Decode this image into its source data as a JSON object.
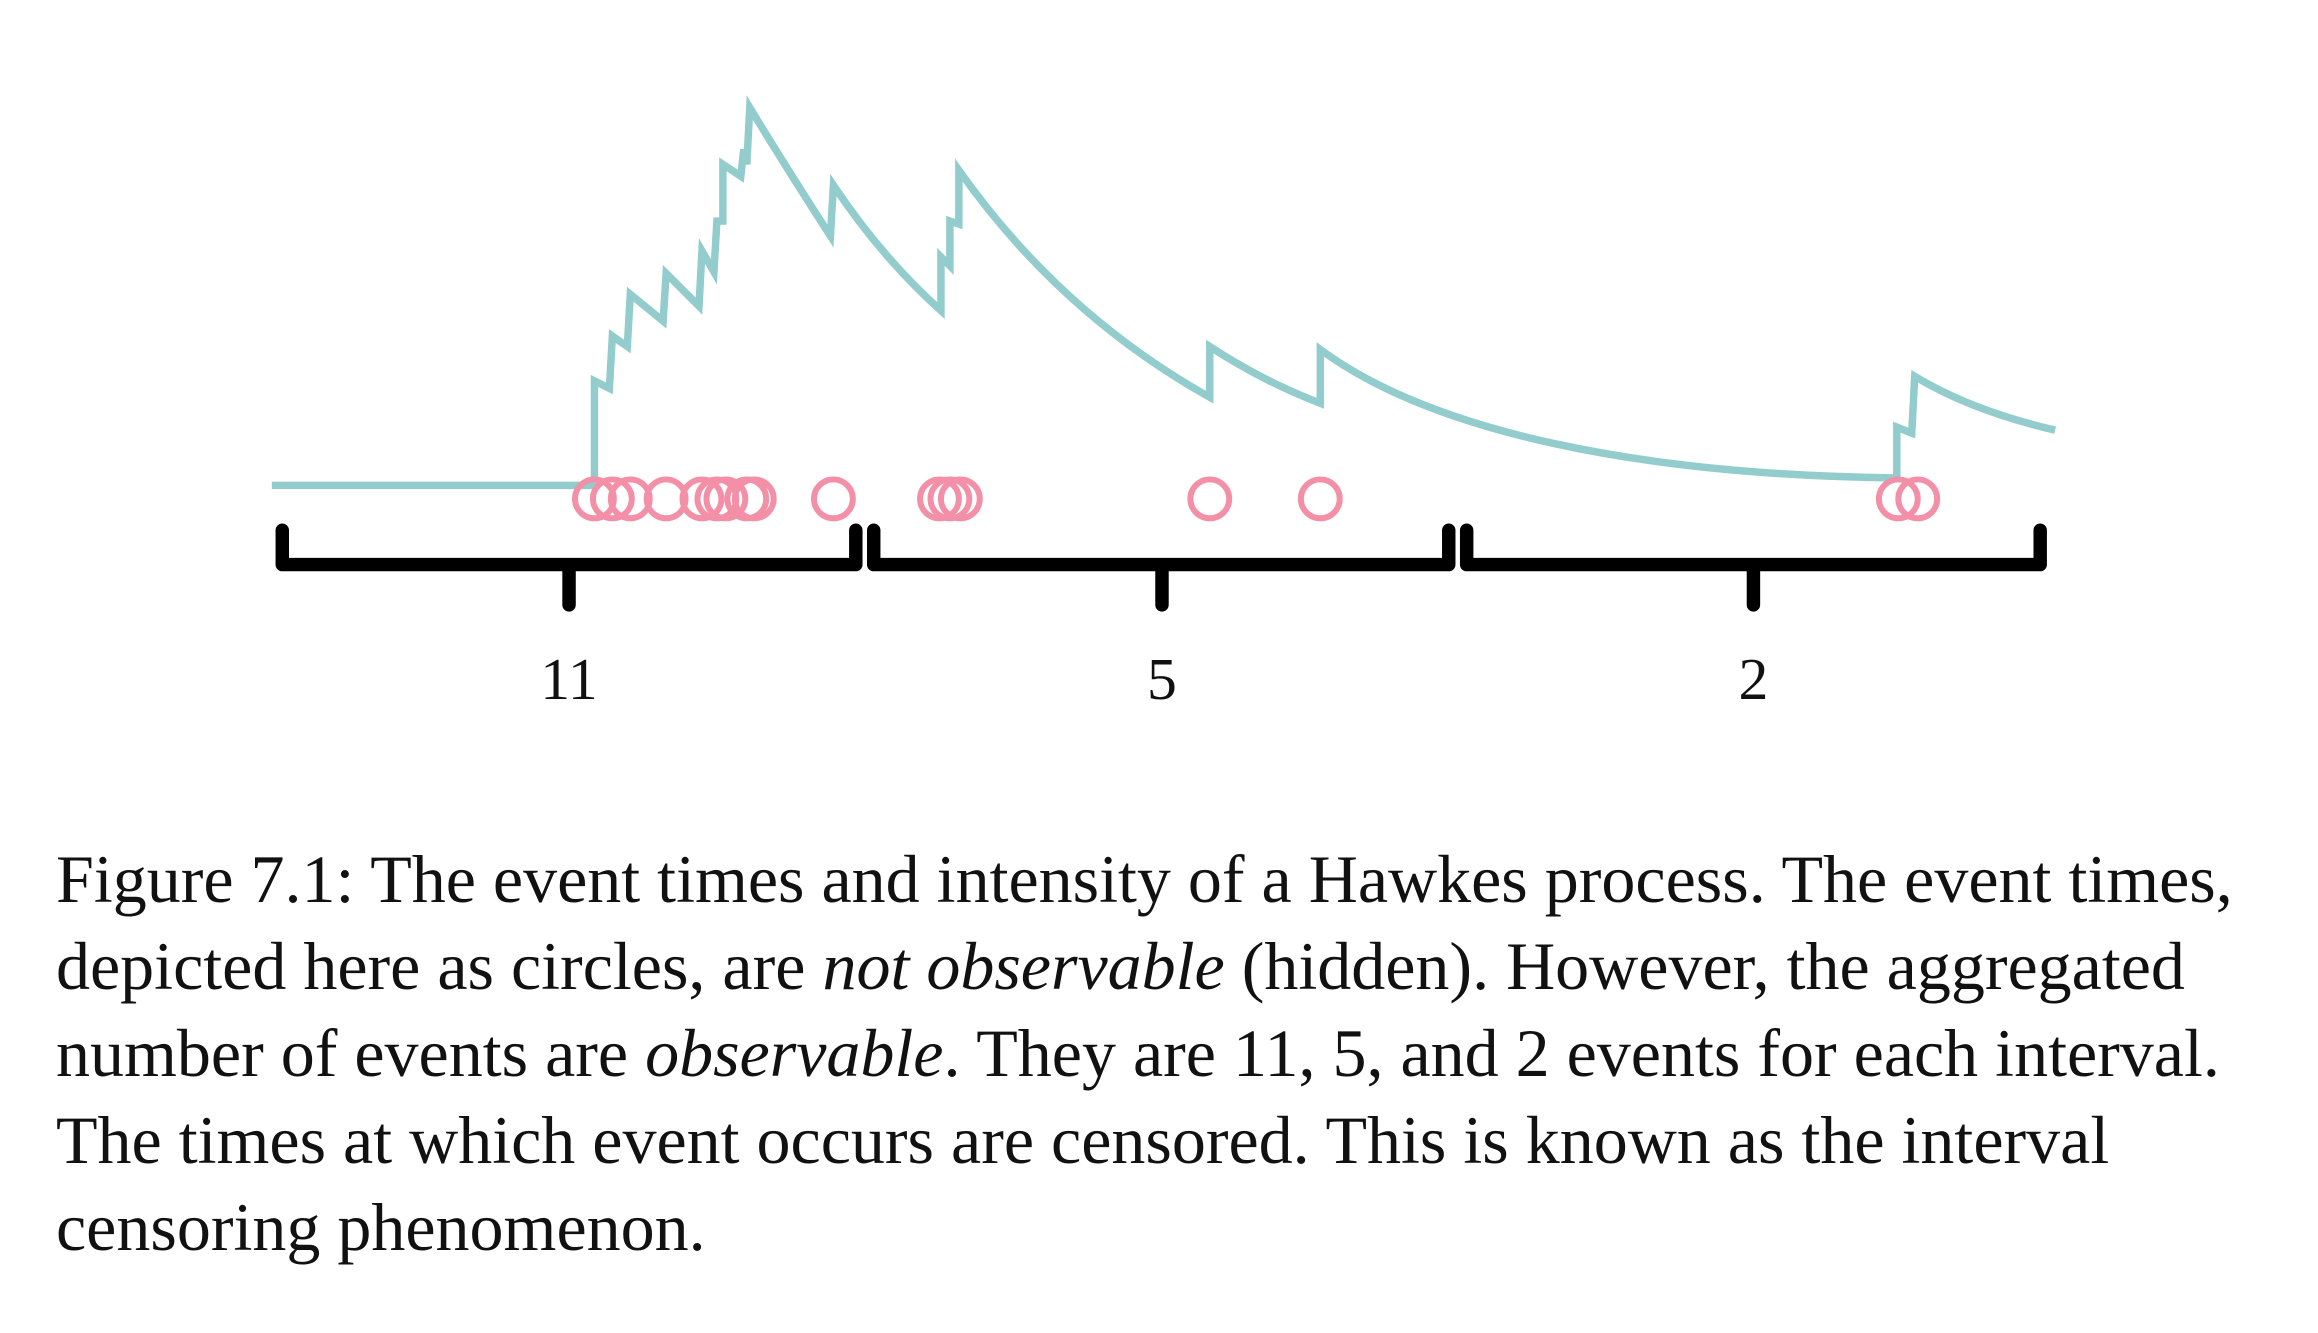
{
  "figure": {
    "interval_counts": [
      "11",
      "5",
      "2"
    ]
  },
  "caption": {
    "parts": [
      "Figure 7.1: The event times and intensity of a Hawkes process. The event times, depicted here as circles, are ",
      "not observable",
      " (hidden). However, the aggregated number of events are ",
      "observable",
      ". They are 11, 5, and 2 events for each interval. The times at which event occurs are censored. This is known as the interval censoring phenomenon."
    ]
  }
}
